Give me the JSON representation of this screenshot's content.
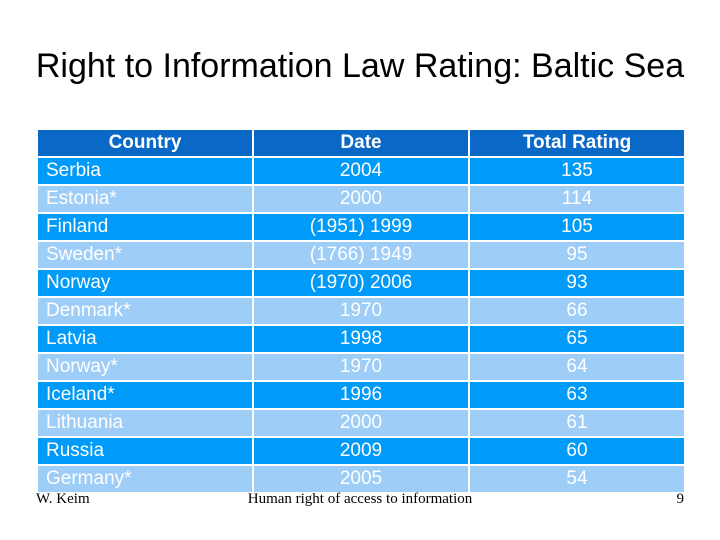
{
  "slide": {
    "title": "Right to Information Law Rating: Baltic Sea"
  },
  "table": {
    "columns": [
      "Country",
      "Date",
      "Total Rating"
    ],
    "rows": [
      {
        "country": "Serbia",
        "date": "2004",
        "rating": "135"
      },
      {
        "country": "Estonia*",
        "date": "2000",
        "rating": "114"
      },
      {
        "country": "Finland",
        "date": "(1951) 1999",
        "rating": "105"
      },
      {
        "country": "Sweden*",
        "date": "(1766) 1949",
        "rating": "95"
      },
      {
        "country": "Norway",
        "date": "(1970) 2006",
        "rating": "93"
      },
      {
        "country": "Denmark*",
        "date": "1970",
        "rating": "66"
      },
      {
        "country": "Latvia",
        "date": "1998",
        "rating": "65"
      },
      {
        "country": "Norway*",
        "date": "1970",
        "rating": "64"
      },
      {
        "country": "Iceland*",
        "date": "1996",
        "rating": "63"
      },
      {
        "country": "Lithuania",
        "date": "2000",
        "rating": "61"
      },
      {
        "country": "Russia",
        "date": "2009",
        "rating": "60"
      },
      {
        "country": "Germany*",
        "date": "2005",
        "rating": "54"
      }
    ]
  },
  "footer": {
    "author": "W. Keim",
    "center": "Human right of access to information",
    "page_number": "9"
  },
  "colors": {
    "header_bg": "#0A69C7",
    "row_bright": "#009AF8",
    "row_light": "#9ECDF8",
    "table_text": "#FFFFFF",
    "grid": "#FFFFFF"
  }
}
